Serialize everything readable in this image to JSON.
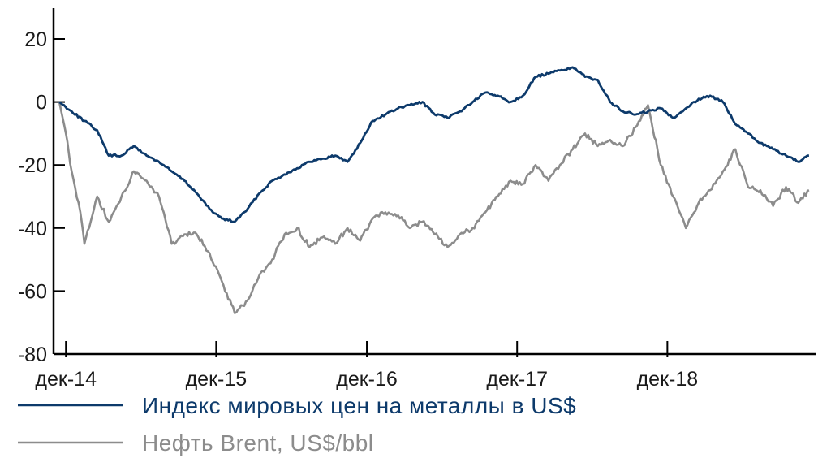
{
  "chart_data": {
    "type": "line",
    "title": "",
    "xlabel": "",
    "ylabel": "",
    "ylim": [
      -80,
      25
    ],
    "yticks": [
      20,
      0,
      -20,
      -40,
      -60,
      -80
    ],
    "ytick_labels": [
      "20",
      "0",
      "-20",
      "-40",
      "-60",
      "-80"
    ],
    "xrange": [
      "2014-11",
      "2019-11"
    ],
    "xticks": [
      "2014-12",
      "2015-12",
      "2016-12",
      "2017-12",
      "2018-12"
    ],
    "xtick_labels": [
      "дек-14",
      "дек-15",
      "дек-16",
      "дек-17",
      "дек-18"
    ],
    "grid": false,
    "legend_position": "bottom",
    "series": [
      {
        "name": "Индекс мировых цен на металлы в US$",
        "color": "#0d3a6b",
        "points": [
          [
            "2014-11-15",
            0
          ],
          [
            "2014-12-15",
            -3
          ],
          [
            "2015-01-15",
            -6
          ],
          [
            "2015-02-15",
            -9
          ],
          [
            "2015-03-15",
            -17
          ],
          [
            "2015-04-15",
            -17
          ],
          [
            "2015-05-15",
            -14
          ],
          [
            "2015-06-15",
            -17
          ],
          [
            "2015-07-15",
            -19
          ],
          [
            "2015-08-15",
            -22
          ],
          [
            "2015-09-15",
            -25
          ],
          [
            "2015-10-15",
            -29
          ],
          [
            "2015-11-15",
            -34
          ],
          [
            "2015-12-15",
            -37
          ],
          [
            "2016-01-15",
            -38
          ],
          [
            "2016-02-15",
            -34
          ],
          [
            "2016-03-15",
            -29
          ],
          [
            "2016-04-15",
            -25
          ],
          [
            "2016-05-15",
            -23
          ],
          [
            "2016-06-15",
            -21
          ],
          [
            "2016-07-15",
            -19
          ],
          [
            "2016-08-15",
            -18
          ],
          [
            "2016-09-15",
            -17
          ],
          [
            "2016-10-15",
            -19
          ],
          [
            "2016-11-15",
            -13
          ],
          [
            "2016-12-15",
            -6
          ],
          [
            "2017-01-15",
            -4
          ],
          [
            "2017-02-15",
            -2
          ],
          [
            "2017-03-15",
            -1
          ],
          [
            "2017-04-15",
            0
          ],
          [
            "2017-05-15",
            -4
          ],
          [
            "2017-06-15",
            -5
          ],
          [
            "2017-07-15",
            -3
          ],
          [
            "2017-08-15",
            0
          ],
          [
            "2017-09-15",
            3
          ],
          [
            "2017-10-15",
            2
          ],
          [
            "2017-11-15",
            0
          ],
          [
            "2017-12-15",
            2
          ],
          [
            "2018-01-15",
            8
          ],
          [
            "2018-02-15",
            9
          ],
          [
            "2018-03-15",
            10
          ],
          [
            "2018-04-15",
            11
          ],
          [
            "2018-05-15",
            8
          ],
          [
            "2018-06-15",
            7
          ],
          [
            "2018-07-15",
            0
          ],
          [
            "2018-08-15",
            -3
          ],
          [
            "2018-09-15",
            -4
          ],
          [
            "2018-10-15",
            -3
          ],
          [
            "2018-11-15",
            -2
          ],
          [
            "2018-12-15",
            -5
          ],
          [
            "2019-01-15",
            -2
          ],
          [
            "2019-02-15",
            1
          ],
          [
            "2019-03-15",
            2
          ],
          [
            "2019-04-15",
            0
          ],
          [
            "2019-05-15",
            -7
          ],
          [
            "2019-06-15",
            -10
          ],
          [
            "2019-07-15",
            -13
          ],
          [
            "2019-08-15",
            -15
          ],
          [
            "2019-09-15",
            -17
          ],
          [
            "2019-10-15",
            -19
          ],
          [
            "2019-11-10",
            -17
          ]
        ]
      },
      {
        "name": "Нефть Brent, US$/bbl",
        "color": "#8c8c8c",
        "points": [
          [
            "2014-11-15",
            0
          ],
          [
            "2014-12-01",
            -10
          ],
          [
            "2014-12-15",
            -22
          ],
          [
            "2015-01-05",
            -35
          ],
          [
            "2015-01-15",
            -45
          ],
          [
            "2015-02-15",
            -30
          ],
          [
            "2015-03-15",
            -38
          ],
          [
            "2015-04-15",
            -30
          ],
          [
            "2015-05-15",
            -22
          ],
          [
            "2015-06-15",
            -25
          ],
          [
            "2015-07-15",
            -30
          ],
          [
            "2015-08-15",
            -45
          ],
          [
            "2015-09-15",
            -42
          ],
          [
            "2015-10-15",
            -42
          ],
          [
            "2015-11-15",
            -48
          ],
          [
            "2015-12-15",
            -57
          ],
          [
            "2016-01-15",
            -67
          ],
          [
            "2016-02-15",
            -63
          ],
          [
            "2016-03-15",
            -55
          ],
          [
            "2016-04-15",
            -50
          ],
          [
            "2016-05-15",
            -42
          ],
          [
            "2016-06-15",
            -40
          ],
          [
            "2016-07-15",
            -46
          ],
          [
            "2016-08-15",
            -43
          ],
          [
            "2016-09-15",
            -45
          ],
          [
            "2016-10-15",
            -40
          ],
          [
            "2016-11-15",
            -44
          ],
          [
            "2016-12-15",
            -37
          ],
          [
            "2017-01-15",
            -35
          ],
          [
            "2017-02-15",
            -36
          ],
          [
            "2017-03-15",
            -40
          ],
          [
            "2017-04-15",
            -38
          ],
          [
            "2017-05-15",
            -42
          ],
          [
            "2017-06-15",
            -46
          ],
          [
            "2017-07-15",
            -42
          ],
          [
            "2017-08-15",
            -40
          ],
          [
            "2017-09-15",
            -35
          ],
          [
            "2017-10-15",
            -30
          ],
          [
            "2017-11-15",
            -25
          ],
          [
            "2017-12-15",
            -26
          ],
          [
            "2018-01-15",
            -20
          ],
          [
            "2018-02-15",
            -25
          ],
          [
            "2018-03-15",
            -20
          ],
          [
            "2018-04-15",
            -15
          ],
          [
            "2018-05-15",
            -10
          ],
          [
            "2018-06-15",
            -14
          ],
          [
            "2018-07-15",
            -12
          ],
          [
            "2018-08-15",
            -14
          ],
          [
            "2018-09-15",
            -8
          ],
          [
            "2018-10-15",
            -1
          ],
          [
            "2018-11-15",
            -20
          ],
          [
            "2018-12-15",
            -30
          ],
          [
            "2019-01-15",
            -40
          ],
          [
            "2019-02-15",
            -32
          ],
          [
            "2019-03-15",
            -28
          ],
          [
            "2019-04-15",
            -22
          ],
          [
            "2019-05-15",
            -15
          ],
          [
            "2019-06-15",
            -27
          ],
          [
            "2019-07-15",
            -28
          ],
          [
            "2019-08-15",
            -33
          ],
          [
            "2019-09-15",
            -27
          ],
          [
            "2019-10-15",
            -32
          ],
          [
            "2019-11-10",
            -28
          ]
        ]
      }
    ]
  }
}
